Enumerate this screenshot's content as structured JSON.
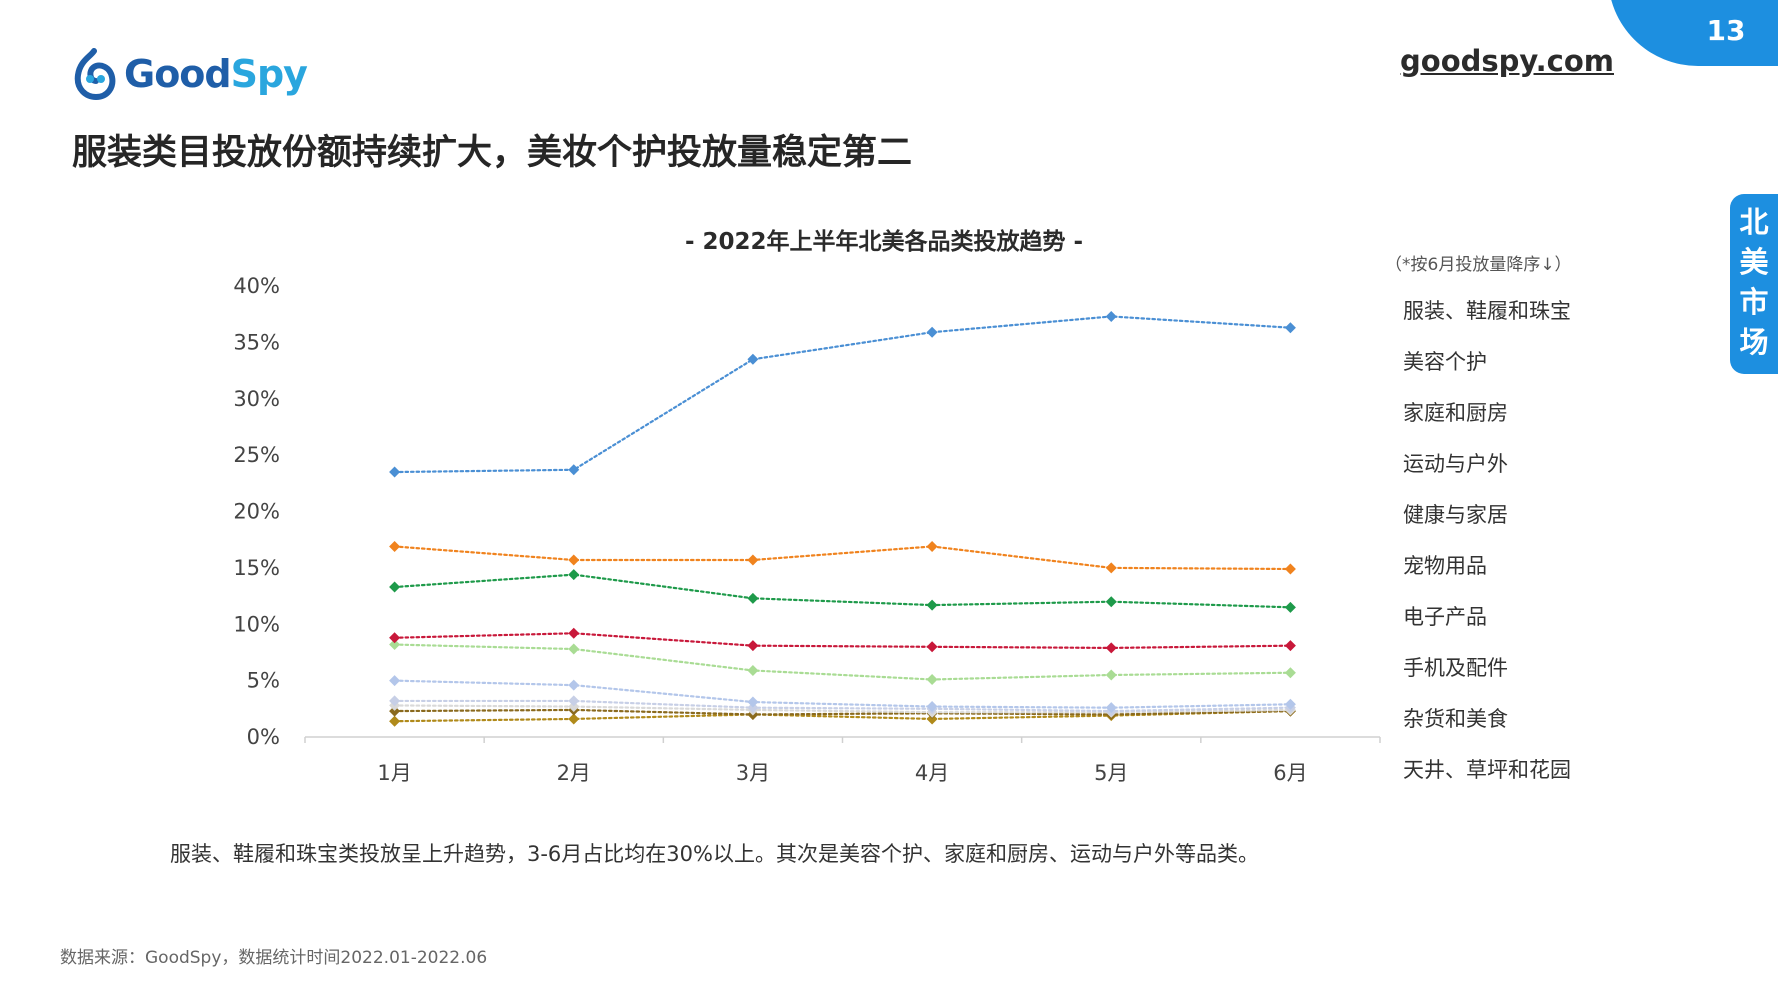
{
  "header": {
    "logo_text_part1": "Good",
    "logo_text_part2": "Spy",
    "site_link": "goodspy.com",
    "page_number": "13",
    "side_tab": "北美市场",
    "page_title": "服装类目投放份额持续扩大，美妆个护投放量稳定第二"
  },
  "chart_data": {
    "type": "line",
    "title": "- 2022年上半年北美各品类投放趋势 -",
    "legend_note": "（*按6月投放量降序↓）",
    "categories": [
      "1月",
      "2月",
      "3月",
      "4月",
      "5月",
      "6月"
    ],
    "yticks": [
      "0%",
      "5%",
      "10%",
      "15%",
      "20%",
      "25%",
      "30%",
      "35%",
      "40%"
    ],
    "ylim": [
      0,
      40
    ],
    "legend_position": "right",
    "series": [
      {
        "name": "服装、鞋履和珠宝",
        "color": "#4a8fd4",
        "values": [
          23.5,
          23.7,
          33.5,
          35.9,
          37.3,
          36.3
        ]
      },
      {
        "name": "美容个护",
        "color": "#f0831e",
        "values": [
          16.9,
          15.7,
          15.7,
          16.9,
          15.0,
          14.9
        ]
      },
      {
        "name": "家庭和厨房",
        "color": "#1e9a4a",
        "values": [
          13.3,
          14.4,
          12.3,
          11.7,
          12.0,
          11.5
        ]
      },
      {
        "name": "运动与户外",
        "color": "#c8183a",
        "values": [
          8.8,
          9.2,
          8.1,
          8.0,
          7.9,
          8.1
        ]
      },
      {
        "name": "健康与家居",
        "color": "#a9dc94",
        "values": [
          8.2,
          7.8,
          5.9,
          5.1,
          5.5,
          5.7
        ]
      },
      {
        "name": "宠物用品",
        "color": "#b3c6ea",
        "values": [
          5.0,
          4.6,
          3.1,
          2.7,
          2.6,
          2.9
        ]
      },
      {
        "name": "电子产品",
        "color": "#c7cfe6",
        "values": [
          3.2,
          3.2,
          2.6,
          2.5,
          2.3,
          2.6
        ]
      },
      {
        "name": "手机及配件",
        "color": "#d9d9d9",
        "values": [
          2.8,
          2.7,
          2.4,
          2.2,
          2.2,
          2.4
        ]
      },
      {
        "name": "杂货和美食",
        "color": "#8a6a1e",
        "values": [
          2.3,
          2.4,
          2.0,
          2.1,
          2.0,
          2.3
        ]
      },
      {
        "name": "天井、草坪和花园",
        "color": "#b08a1a",
        "values": [
          1.4,
          1.6,
          2.0,
          1.6,
          1.9,
          2.3
        ]
      }
    ]
  },
  "summary": "服装、鞋履和珠宝类投放呈上升趋势，3-6月占比均在30%以上。其次是美容个护、家庭和厨房、运动与户外等品类。",
  "source": "数据来源：GoodSpy，数据统计时间2022.01-2022.06"
}
